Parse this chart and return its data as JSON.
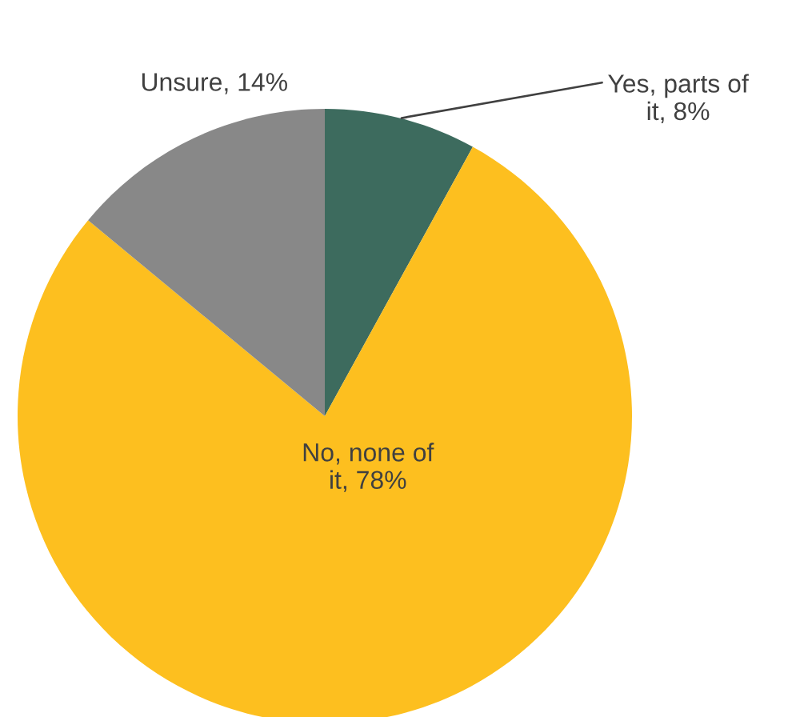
{
  "chart_data": {
    "type": "pie",
    "categories": [
      "Yes, parts of it",
      "No, none of it",
      "Unsure"
    ],
    "values": [
      8,
      78,
      14
    ],
    "value_labels": [
      "8%",
      "78%",
      "14%"
    ],
    "colors": [
      "#3d6b5e",
      "#fdbf1f",
      "#888888"
    ],
    "legend": false
  }
}
